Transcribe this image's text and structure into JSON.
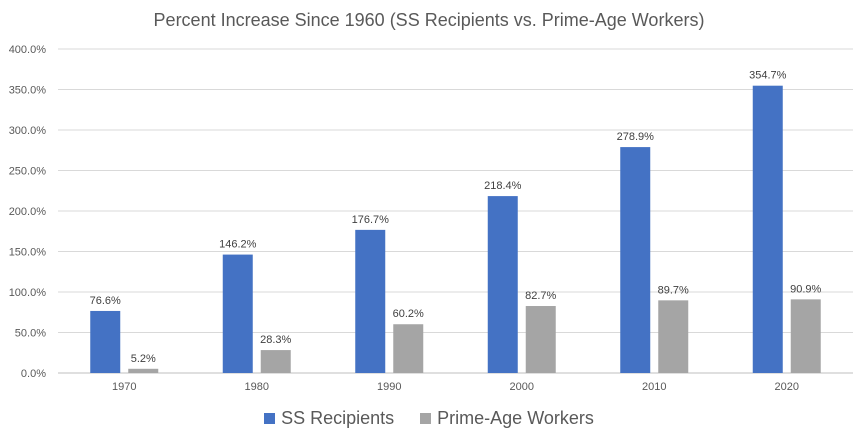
{
  "chart_data": {
    "type": "bar",
    "title": "Percent Increase Since 1960 (SS Recipients vs. Prime-Age Workers)",
    "xlabel": "",
    "ylabel": "",
    "categories": [
      "1970",
      "1980",
      "1990",
      "2000",
      "2010",
      "2020"
    ],
    "series": [
      {
        "name": "SS Recipients",
        "color": "#4472C4",
        "values": [
          76.6,
          146.2,
          176.7,
          218.4,
          278.9,
          354.7
        ],
        "labels": [
          "76.6%",
          "146.2%",
          "176.7%",
          "218.4%",
          "278.9%",
          "354.7%"
        ]
      },
      {
        "name": "Prime-Age Workers",
        "color": "#A5A5A5",
        "values": [
          5.2,
          28.3,
          60.2,
          82.7,
          89.7,
          90.9
        ],
        "labels": [
          "5.2%",
          "28.3%",
          "60.2%",
          "82.7%",
          "89.7%",
          "90.9%"
        ]
      }
    ],
    "ylim": [
      0,
      400
    ],
    "yticks": [
      0,
      50,
      100,
      150,
      200,
      250,
      300,
      350,
      400
    ],
    "ytick_labels": [
      "0.0%",
      "50.0%",
      "100.0%",
      "150.0%",
      "200.0%",
      "250.0%",
      "300.0%",
      "350.0%",
      "400.0%"
    ],
    "grid": true,
    "legend_position": "bottom"
  }
}
